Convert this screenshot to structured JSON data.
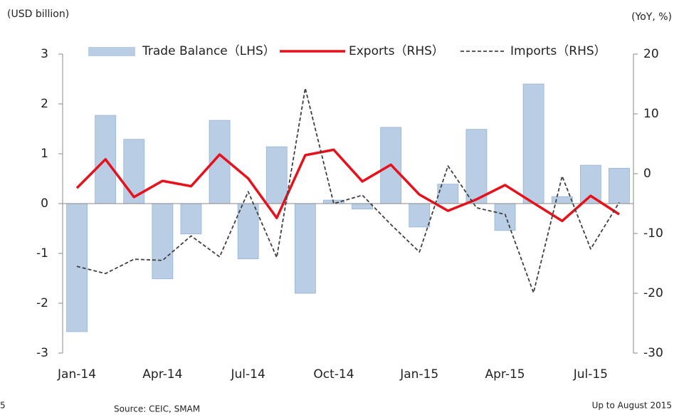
{
  "chart_data": {
    "type": "bar_line",
    "ylabel": "(USD billion)",
    "y2label": "(YoY, %)",
    "categories": [
      "Jan-14",
      null,
      null,
      "Apr-14",
      null,
      null,
      "Jul-14",
      null,
      null,
      "Oct-14",
      null,
      null,
      "Jan-15",
      null,
      null,
      "Apr-15",
      null,
      null,
      "Jul-15",
      null
    ],
    "series": [
      {
        "name": "Trade Balance（LHS）",
        "kind": "bar",
        "color": "#b9cde5",
        "axis": "y",
        "values": [
          -2.57,
          1.77,
          1.29,
          -1.51,
          -0.61,
          1.67,
          -1.11,
          1.14,
          -1.8,
          0.07,
          -0.11,
          1.53,
          -0.47,
          0.39,
          1.49,
          -0.54,
          2.4,
          0.14,
          0.77,
          0.71
        ]
      },
      {
        "name": "Exports（RHS）",
        "kind": "line",
        "color": "#e8101a",
        "axis": "y2",
        "values": [
          -2.4,
          2.4,
          -3.9,
          -1.2,
          -2.1,
          3.2,
          -0.8,
          -7.4,
          3.1,
          4.0,
          -1.3,
          1.5,
          -3.5,
          -6.2,
          -4.3,
          -1.9,
          -4.9,
          -7.9,
          -3.7,
          -6.8
        ]
      },
      {
        "name": "Imports（RHS）",
        "kind": "dashed",
        "color": "#404040",
        "axis": "y2",
        "values": [
          -15.5,
          -16.7,
          -14.3,
          -14.5,
          -10.4,
          -13.9,
          -3.0,
          -14.0,
          14.3,
          -5.0,
          -3.6,
          -8.5,
          -13.1,
          1.3,
          -5.7,
          -6.8,
          -19.9,
          -0.4,
          -12.6,
          -4.8
        ]
      }
    ],
    "ylim": [
      -3,
      3
    ],
    "yticks": [
      -3,
      -2,
      -1,
      0,
      1,
      2,
      3
    ],
    "y2lim": [
      -30,
      20
    ],
    "y2ticks": [
      -30,
      -20,
      -10,
      0,
      10,
      20
    ],
    "page_number": "5",
    "source": "Source: CEIC, SMAM",
    "note": "Up to August 2015"
  }
}
